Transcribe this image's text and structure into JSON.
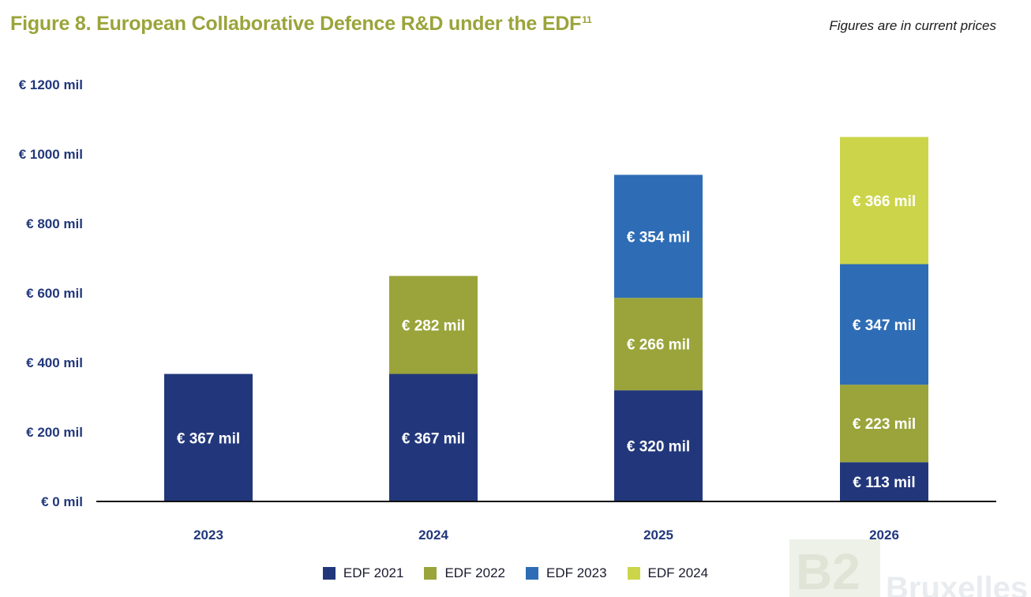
{
  "title": "Figure 8. European Collaborative Defence R&D under the EDF",
  "title_sup": "11",
  "note": "Figures are in current prices",
  "watermark": {
    "mark": "B2",
    "word": "Bruxelles"
  },
  "colors": {
    "EDF 2021": "#22377b",
    "EDF 2022": "#9aa43a",
    "EDF 2023": "#2e6db5",
    "EDF 2024": "#ccd54a",
    "axis_text": "#22377b",
    "title": "#9aa43a"
  },
  "chart_data": {
    "type": "bar",
    "stacked": true,
    "categories": [
      "2023",
      "2024",
      "2025",
      "2026"
    ],
    "series": [
      {
        "name": "EDF 2021",
        "values": [
          367,
          367,
          320,
          113
        ]
      },
      {
        "name": "EDF 2022",
        "values": [
          0,
          282,
          266,
          223
        ]
      },
      {
        "name": "EDF 2023",
        "values": [
          0,
          0,
          354,
          347
        ]
      },
      {
        "name": "EDF 2024",
        "values": [
          0,
          0,
          0,
          366
        ]
      }
    ],
    "data_labels": [
      [
        "€ 367 mil",
        "",
        "",
        ""
      ],
      [
        "€ 367 mil",
        "€ 282 mil",
        "",
        ""
      ],
      [
        "€ 320 mil",
        "€ 266 mil",
        "€ 354 mil",
        ""
      ],
      [
        "€ 113 mil",
        "€ 223 mil",
        "€ 347 mil",
        "€ 366 mil"
      ]
    ],
    "y_ticks": [
      0,
      200,
      400,
      600,
      800,
      1000,
      1200
    ],
    "y_tick_labels": [
      "€ 0 mil",
      "€ 200 mil",
      "€ 400 mil",
      "€ 600 mil",
      "€ 800 mil",
      "€ 1000 mil",
      "€ 1200 mil"
    ],
    "ylim": [
      0,
      1200
    ],
    "grid": false,
    "legend_position": "bottom"
  }
}
